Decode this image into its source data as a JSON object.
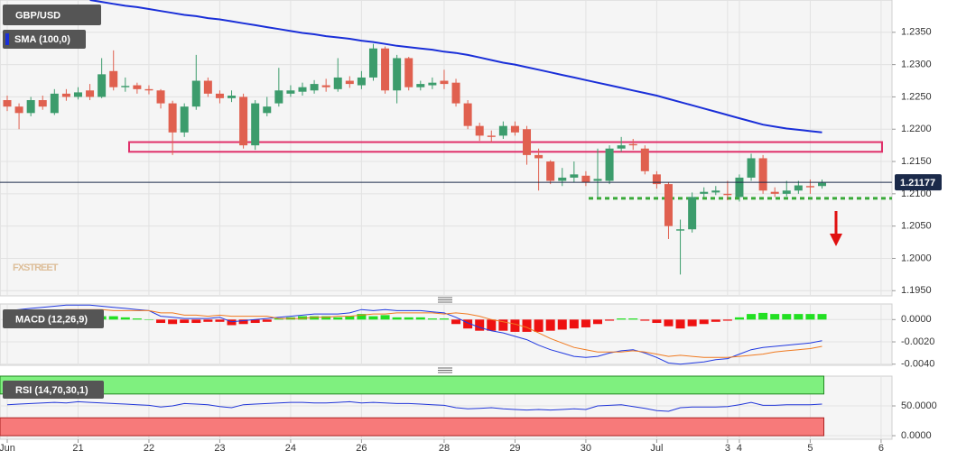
{
  "chart_data": [
    {
      "type": "candlestick",
      "title": "GBP/USD",
      "watermark": "FXSTREET",
      "categories": [
        "Jun",
        null,
        null,
        null,
        null,
        null,
        "21",
        null,
        null,
        null,
        null,
        null,
        "22",
        null,
        null,
        null,
        null,
        null,
        "23",
        null,
        null,
        null,
        null,
        null,
        "24",
        null,
        null,
        null,
        null,
        null,
        "26",
        null,
        null,
        null,
        null,
        null,
        null,
        "28",
        null,
        null,
        null,
        null,
        null,
        "29",
        null,
        null,
        null,
        null,
        null,
        "30",
        null,
        null,
        null,
        null,
        null,
        "Jul",
        null,
        null,
        null,
        null,
        null,
        "3",
        "4",
        null,
        null,
        null,
        null,
        null,
        "5",
        null,
        null,
        null,
        null,
        null,
        "6"
      ],
      "open": [
        1.2245,
        1.2235,
        1.2225,
        1.2245,
        1.2225,
        1.2255,
        1.225,
        1.226,
        1.225,
        1.229,
        1.2265,
        1.2268,
        1.2262,
        1.226,
        1.224,
        1.2195,
        1.2235,
        1.2275,
        1.2255,
        1.2248,
        1.225,
        1.2175,
        1.2225,
        1.224,
        1.2255,
        1.2258,
        1.226,
        1.2268,
        1.2262,
        1.2275,
        1.2268,
        1.228,
        1.2325,
        1.226,
        1.231,
        1.2265,
        1.2268,
        1.2275,
        1.2272,
        1.224,
        1.2205,
        1.219,
        1.219,
        1.2205,
        1.22,
        1.216,
        1.215,
        1.212,
        1.2125,
        1.2128,
        1.212,
        1.212,
        1.217,
        1.2177,
        1.217,
        1.213,
        1.2115,
        1.2043,
        1.2045,
        1.21,
        1.2102,
        1.21,
        1.2095,
        1.2125,
        1.2155,
        1.2103,
        1.21,
        1.2105,
        1.2112,
        1.2112,
        null,
        null,
        null,
        null,
        null
      ],
      "high": [
        1.2252,
        1.224,
        1.225,
        1.2252,
        1.2262,
        1.2262,
        1.2265,
        1.227,
        1.231,
        1.2322,
        1.228,
        1.2272,
        1.2268,
        1.2262,
        1.2244,
        1.224,
        1.2315,
        1.228,
        1.226,
        1.226,
        1.2255,
        1.2245,
        1.225,
        1.2295,
        1.2268,
        1.2272,
        1.2276,
        1.2278,
        1.231,
        1.2282,
        1.229,
        1.2332,
        1.2328,
        1.2315,
        1.2312,
        1.2275,
        1.228,
        1.2292,
        1.2278,
        1.2245,
        1.221,
        1.2198,
        1.2212,
        1.2212,
        1.2205,
        1.217,
        1.2152,
        1.214,
        1.215,
        1.2135,
        1.217,
        1.2175,
        1.2188,
        1.2185,
        1.2175,
        1.2135,
        1.2118,
        1.206,
        1.2102,
        1.211,
        1.2112,
        1.212,
        1.213,
        1.2162,
        1.216,
        1.211,
        1.212,
        1.212,
        1.2122,
        1.2122,
        null,
        null,
        null,
        null,
        null
      ],
      "low": [
        1.2228,
        1.22,
        1.222,
        1.223,
        1.2222,
        1.2244,
        1.2246,
        1.2245,
        1.2248,
        1.226,
        1.2258,
        1.2255,
        1.2254,
        1.2232,
        1.216,
        1.2188,
        1.223,
        1.225,
        1.224,
        1.2242,
        1.217,
        1.2168,
        1.222,
        1.2235,
        1.225,
        1.2252,
        1.2255,
        1.2258,
        1.2258,
        1.2264,
        1.2262,
        1.2275,
        1.2255,
        1.224,
        1.226,
        1.226,
        1.2262,
        1.2262,
        1.2235,
        1.22,
        1.2182,
        1.218,
        1.2185,
        1.219,
        1.2145,
        1.2105,
        1.2115,
        1.2112,
        1.2118,
        1.2112,
        1.2095,
        1.2115,
        1.2165,
        1.2168,
        1.213,
        1.2108,
        1.203,
        1.1975,
        1.204,
        1.2095,
        1.2098,
        1.209,
        1.2088,
        1.212,
        1.21,
        1.2095,
        1.2096,
        1.21,
        1.21,
        1.2108,
        null,
        null,
        null,
        null,
        null
      ],
      "close": [
        1.2235,
        1.2225,
        1.2245,
        1.2235,
        1.2255,
        1.225,
        1.2257,
        1.225,
        1.2285,
        1.2265,
        1.2267,
        1.2262,
        1.226,
        1.224,
        1.2195,
        1.2235,
        1.2275,
        1.2255,
        1.2248,
        1.2252,
        1.2175,
        1.224,
        1.2235,
        1.226,
        1.226,
        1.2265,
        1.227,
        1.2265,
        1.228,
        1.227,
        1.228,
        1.2325,
        1.226,
        1.231,
        1.2265,
        1.227,
        1.2272,
        1.227,
        1.224,
        1.2205,
        1.219,
        1.2188,
        1.2205,
        1.2195,
        1.216,
        1.2155,
        1.212,
        1.2125,
        1.213,
        1.2118,
        1.2123,
        1.217,
        1.2175,
        1.2175,
        1.2135,
        1.2115,
        1.205,
        1.2045,
        1.2095,
        1.2103,
        1.2105,
        1.2098,
        1.2125,
        1.2155,
        1.2105,
        1.21,
        1.2105,
        1.2113,
        1.211,
        1.2117,
        null,
        null,
        null,
        null,
        null
      ],
      "up_color": "#3c9c6c",
      "down_color": "#e0604f",
      "sma": {
        "name": "SMA (100,0)",
        "color": "#1a2fd8",
        "values": [
          null,
          null,
          null,
          null,
          null,
          null,
          null,
          1.24,
          1.2397,
          1.2394,
          1.2391,
          1.2389,
          1.2386,
          1.2383,
          1.238,
          1.2377,
          1.2375,
          1.2372,
          1.237,
          1.2367,
          1.2364,
          1.2361,
          1.2358,
          1.2355,
          1.2352,
          1.2349,
          1.2347,
          1.2344,
          1.2342,
          1.234,
          1.2337,
          1.2335,
          1.2332,
          1.2329,
          1.2327,
          1.2325,
          1.2323,
          1.232,
          1.2318,
          1.2315,
          1.2311,
          1.2307,
          1.2303,
          1.23,
          1.2296,
          1.2292,
          1.2288,
          1.2284,
          1.228,
          1.2276,
          1.2272,
          1.2268,
          1.2264,
          1.226,
          1.2256,
          1.2252,
          1.2247,
          1.2242,
          1.2237,
          1.2232,
          1.2227,
          1.2222,
          1.2217,
          1.2212,
          1.2207,
          1.2204,
          1.2201,
          1.2199,
          1.2197,
          1.2195,
          null,
          null,
          null,
          null,
          null
        ]
      },
      "last_price": 1.21177,
      "resistance_zone": [
        1.2165,
        1.218
      ],
      "support_level": 1.2093,
      "ylim": [
        1.1942,
        1.24
      ],
      "yticks": [
        {
          "value": 1.195,
          "label": "1.1950"
        },
        {
          "value": 1.2,
          "label": "1.2000"
        },
        {
          "value": 1.205,
          "label": "1.2050"
        },
        {
          "value": 1.21,
          "label": "1.2100"
        },
        {
          "value": 1.215,
          "label": "1.2150"
        },
        {
          "value": 1.22,
          "label": "1.2200"
        },
        {
          "value": 1.225,
          "label": "1.2250"
        },
        {
          "value": 1.23,
          "label": "1.2300"
        },
        {
          "value": 1.235,
          "label": "1.2350"
        }
      ],
      "grid": true
    },
    {
      "type": "macd",
      "title": "MACD (12,26,9)",
      "histogram": [
        0.0002,
        0.0002,
        0.0003,
        0.0003,
        0.0004,
        0.0004,
        0.0004,
        0.0004,
        0.0003,
        0.0003,
        0.0002,
        0.0001,
        0.0,
        -0.0003,
        -0.0004,
        -0.0003,
        -0.0003,
        -0.0002,
        -0.0002,
        -0.0005,
        -0.0004,
        -0.0003,
        -0.0002,
        0.0001,
        0.0002,
        0.0003,
        0.0003,
        0.0003,
        0.0002,
        0.0003,
        0.0005,
        0.0003,
        0.0004,
        0.0002,
        0.0002,
        0.0002,
        0.0001,
        0.0001,
        -0.0004,
        -0.0008,
        -0.001,
        -0.001,
        -0.001,
        -0.0011,
        -0.0011,
        -0.0011,
        -0.001,
        -0.0009,
        -0.0008,
        -0.0007,
        -0.0004,
        -0.0001,
        0.0001,
        0.0001,
        -0.0001,
        -0.0003,
        -0.0006,
        -0.0008,
        -0.0006,
        -0.0004,
        -0.0002,
        -0.0001,
        0.0002,
        0.0005,
        0.0006,
        0.0005,
        0.0005,
        0.0005,
        0.0005,
        0.0005,
        null,
        null,
        null,
        null,
        null
      ],
      "macd": [
        0.0008,
        0.0009,
        0.001,
        0.0011,
        0.0012,
        0.0013,
        0.0013,
        0.0013,
        0.0012,
        0.0011,
        0.001,
        0.0009,
        0.0008,
        0.0003,
        0.0002,
        0.0001,
        0.0001,
        0.0001,
        0.0002,
        -0.0002,
        -0.0001,
        0.0,
        0.0001,
        0.0002,
        0.0003,
        0.0004,
        0.0005,
        0.0005,
        0.0005,
        0.0006,
        0.0009,
        0.0008,
        0.0009,
        0.0008,
        0.0008,
        0.0008,
        0.0007,
        0.0006,
        0.0002,
        -0.0003,
        -0.0007,
        -0.001,
        -0.0012,
        -0.0015,
        -0.0018,
        -0.0023,
        -0.0027,
        -0.003,
        -0.0033,
        -0.0034,
        -0.0033,
        -0.003,
        -0.0028,
        -0.0027,
        -0.003,
        -0.0034,
        -0.0039,
        -0.004,
        -0.0039,
        -0.0038,
        -0.0036,
        -0.0035,
        -0.0031,
        -0.0027,
        -0.0025,
        -0.0024,
        -0.0023,
        -0.0022,
        -0.0021,
        -0.0019,
        null,
        null,
        null,
        null,
        null
      ],
      "signal": [
        0.0006,
        0.0007,
        0.0007,
        0.0008,
        0.0008,
        0.0009,
        0.0009,
        0.0009,
        0.0009,
        0.0008,
        0.0008,
        0.0008,
        0.0008,
        0.0006,
        0.0006,
        0.0004,
        0.0004,
        0.0003,
        0.0004,
        0.0003,
        0.0003,
        0.0003,
        0.0003,
        0.0001,
        0.0001,
        0.0001,
        0.0002,
        0.0002,
        0.0003,
        0.0003,
        0.0004,
        0.0005,
        0.0005,
        0.0006,
        0.0006,
        0.0006,
        0.0006,
        0.0005,
        0.0006,
        0.0005,
        0.0003,
        0.0,
        -0.0002,
        -0.0004,
        -0.0007,
        -0.0012,
        -0.0017,
        -0.0021,
        -0.0025,
        -0.0027,
        -0.0029,
        -0.0029,
        -0.0029,
        -0.0028,
        -0.0029,
        -0.0031,
        -0.0033,
        -0.0032,
        -0.0033,
        -0.0034,
        -0.0034,
        -0.0034,
        -0.0033,
        -0.0032,
        -0.0031,
        -0.0029,
        -0.0028,
        -0.0027,
        -0.0026,
        -0.0024,
        null,
        null,
        null,
        null,
        null
      ],
      "hist_up_color": "#22e022",
      "hist_down_color": "#ee1111",
      "macd_color": "#2038e0",
      "signal_color": "#f07a20",
      "ylim": [
        -0.0041,
        0.0014
      ],
      "yticks": [
        {
          "value": -0.004,
          "label": "-0.0040"
        },
        {
          "value": -0.002,
          "label": "-0.0020"
        },
        {
          "value": 0,
          "label": "0.0000"
        }
      ],
      "grid": true
    },
    {
      "type": "rsi",
      "title": "RSI (14,70,30,1)",
      "values": [
        52,
        53,
        54,
        55,
        56,
        55,
        57,
        56,
        55,
        54,
        53,
        52,
        51,
        48,
        50,
        54,
        53,
        52,
        49,
        47,
        52,
        53,
        54,
        55,
        56,
        56,
        55,
        55,
        56,
        57,
        55,
        56,
        55,
        54,
        54,
        53,
        52,
        51,
        47,
        45,
        46,
        47,
        45,
        44,
        43,
        44,
        43,
        44,
        45,
        44,
        50,
        51,
        52,
        49,
        46,
        42,
        41,
        47,
        48,
        48,
        48,
        49,
        52,
        56,
        51,
        51,
        52,
        52,
        52,
        53,
        null,
        null,
        null,
        null,
        null
      ],
      "overbought": 70,
      "oversold": 30,
      "color": "#2035d8",
      "overbought_color": "#7ff07f",
      "oversold_color": "#f77a7a",
      "ylim": [
        -6,
        100
      ],
      "yticks": [
        {
          "value": 0,
          "label": "0.0000"
        },
        {
          "value": 50,
          "label": "50.0000"
        }
      ],
      "grid": true
    }
  ]
}
